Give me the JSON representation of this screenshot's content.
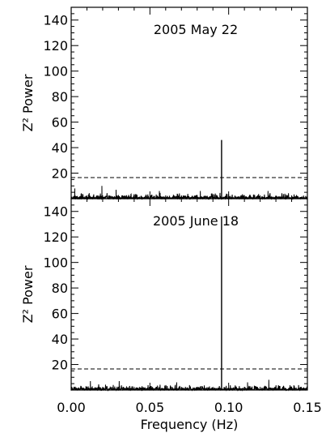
{
  "chart_data": [
    {
      "type": "line",
      "title": "2005 May 22",
      "ylabel": "Z² Power",
      "xlabel": "",
      "xlim": [
        0.0,
        0.15
      ],
      "ylim": [
        0,
        150
      ],
      "yticks": [
        20,
        40,
        60,
        80,
        100,
        120,
        140
      ],
      "threshold": 16.5,
      "peak": {
        "x": 0.0955,
        "y": 46
      },
      "minor_peaks": [
        {
          "x": 0.0195,
          "y": 10
        },
        {
          "x": 0.0023,
          "y": 8
        },
        {
          "x": 0.0285,
          "y": 7
        },
        {
          "x": 0.056,
          "y": 6
        },
        {
          "x": 0.082,
          "y": 6
        },
        {
          "x": 0.125,
          "y": 6
        }
      ],
      "baseline_max": 4.5,
      "grid": false,
      "legend": "none",
      "color": "#000000"
    },
    {
      "type": "line",
      "title": "2005 June 18",
      "ylabel": "Z² Power",
      "xlabel": "Frequency (Hz)",
      "xlim": [
        0.0,
        0.15
      ],
      "ylim": [
        0,
        150
      ],
      "xticks": [
        0.0,
        0.05,
        0.1,
        0.15
      ],
      "xtick_labels": [
        "0.00",
        "0.05",
        "0.10",
        "0.15"
      ],
      "yticks": [
        20,
        40,
        60,
        80,
        100,
        120,
        140
      ],
      "threshold": 16.5,
      "peak": {
        "x": 0.0955,
        "y": 136
      },
      "minor_peaks": [
        {
          "x": 0.0122,
          "y": 7
        },
        {
          "x": 0.0305,
          "y": 7
        },
        {
          "x": 0.1255,
          "y": 8
        },
        {
          "x": 0.067,
          "y": 6
        },
        {
          "x": 0.112,
          "y": 6
        }
      ],
      "baseline_max": 4.5,
      "grid": false,
      "legend": "none",
      "color": "#000000"
    }
  ]
}
